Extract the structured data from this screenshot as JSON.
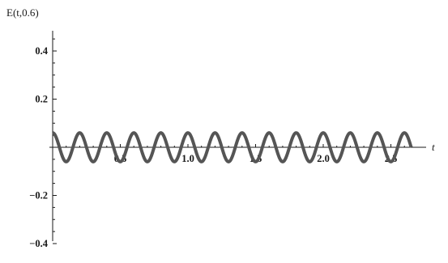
{
  "chart_data": {
    "type": "line",
    "ylabel": "E(t,0.6)",
    "xlabel": "t",
    "xlim": [
      0,
      2.65
    ],
    "ylim": [
      -0.5,
      0.5
    ],
    "x_ticks": [
      {
        "value": 0.5,
        "label": "0.5"
      },
      {
        "value": 1.0,
        "label": "1.0"
      },
      {
        "value": 1.5,
        "label": "1.5"
      },
      {
        "value": 2.0,
        "label": "2.0"
      },
      {
        "value": 2.5,
        "label": "2.5"
      }
    ],
    "y_ticks": [
      {
        "value": 0.4,
        "label": "0.4"
      },
      {
        "value": 0.2,
        "label": "0.2"
      },
      {
        "value": -0.2,
        "label": "−0.2"
      },
      {
        "value": -0.4,
        "label": "−0.4"
      }
    ],
    "series": [
      {
        "function": "0.06*cos(2*pi*t/0.2)",
        "amplitude": 0.06,
        "period": 0.2,
        "t_range": [
          0,
          2.65
        ],
        "color": "#555555"
      }
    ],
    "grid": false
  }
}
